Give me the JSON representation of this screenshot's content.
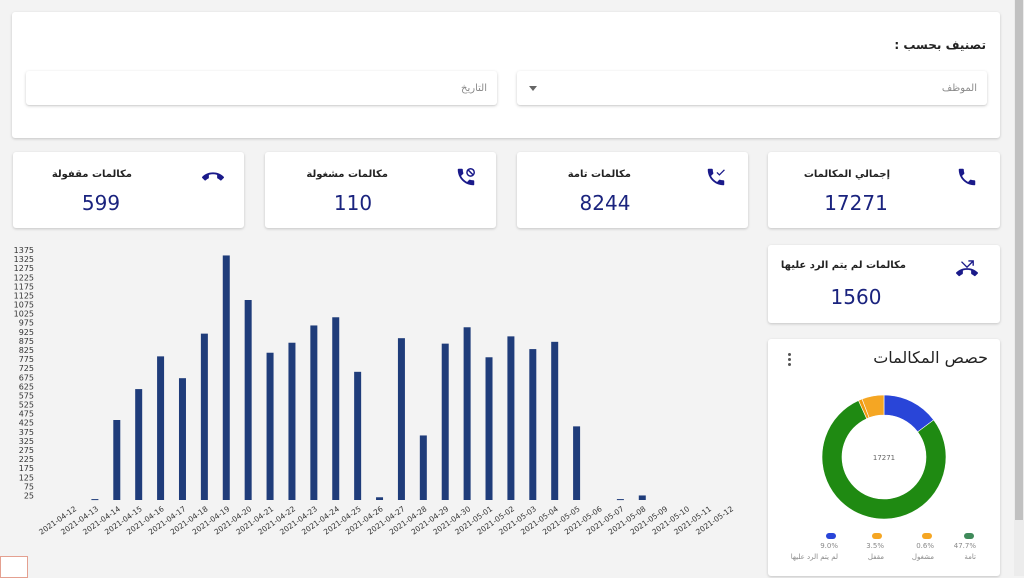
{
  "filter": {
    "title": "تصنيف بحسب :",
    "employee_placeholder": "الموظف",
    "date_placeholder": "التاريخ"
  },
  "stats": {
    "total": {
      "label": "إجمالي المكالمات",
      "value": "17271",
      "icon": "phone-icon"
    },
    "complete": {
      "label": "مكالمات تامة",
      "value": "8244",
      "icon": "phone-check-icon"
    },
    "busy": {
      "label": "مكالمات مشغولة",
      "value": "110",
      "icon": "phone-busy-icon"
    },
    "closed": {
      "label": "مكالمات مقفولة",
      "value": "599",
      "icon": "phone-hangup-icon"
    },
    "missed": {
      "label": "مكالمات لم يتم الرد عليها",
      "value": "1560",
      "icon": "phone-missed-icon"
    }
  },
  "pie": {
    "title": "حصص المكالمات",
    "center_label": "17271",
    "legend": [
      {
        "name": "تامة",
        "pct": "47.7%",
        "color": "#3f8a5a"
      },
      {
        "name": "مشغول",
        "pct": "0.6%",
        "color": "#f5a623"
      },
      {
        "name": "مقفل",
        "pct": "3.5%",
        "color": "#f5a623"
      },
      {
        "name": "لم يتم الرد عليها",
        "pct": "9.0%",
        "color": "#2945d8"
      }
    ]
  },
  "chart_data": [
    {
      "type": "bar",
      "categories": [
        "2021-04-12",
        "2021-04-13",
        "2021-04-14",
        "2021-04-15",
        "2021-04-16",
        "2021-04-17",
        "2021-04-18",
        "2021-04-19",
        "2021-04-20",
        "2021-04-21",
        "2021-04-22",
        "2021-04-23",
        "2021-04-24",
        "2021-04-25",
        "2021-04-26",
        "2021-04-27",
        "2021-04-28",
        "2021-04-29",
        "2021-04-30",
        "2021-05-01",
        "2021-05-02",
        "2021-05-03",
        "2021-05-04",
        "2021-05-05",
        "2021-05-06",
        "2021-05-07",
        "2021-05-08",
        "2021-05-09",
        "2021-05-10",
        "2021-05-11",
        "2021-05-12"
      ],
      "values": [
        0,
        5,
        440,
        610,
        790,
        670,
        915,
        1345,
        1100,
        810,
        865,
        960,
        1005,
        705,
        15,
        890,
        355,
        860,
        950,
        785,
        900,
        830,
        870,
        405,
        0,
        5,
        25,
        0,
        0,
        0,
        0
      ],
      "ylim": [
        0,
        1375
      ],
      "yticks": [
        25,
        75,
        125,
        175,
        225,
        275,
        325,
        375,
        425,
        475,
        525,
        575,
        625,
        675,
        725,
        775,
        825,
        875,
        925,
        975,
        1025,
        1075,
        1125,
        1175,
        1225,
        1275,
        1325,
        1375
      ],
      "color": "#1f3c7a",
      "xlabel": "",
      "ylabel": ""
    },
    {
      "type": "pie",
      "categories": [
        "تامة",
        "مشغول",
        "مقفل",
        "لم يتم الرد عليها"
      ],
      "values": [
        47.7,
        0.6,
        3.5,
        9.0
      ],
      "colors": [
        "#1f8a12",
        "#f5a623",
        "#f5a623",
        "#2945d8"
      ],
      "display_colors": [
        "#1f8a12",
        "#f09a10",
        "#f5a623",
        "#2945d8"
      ],
      "center_label": "17271"
    }
  ]
}
